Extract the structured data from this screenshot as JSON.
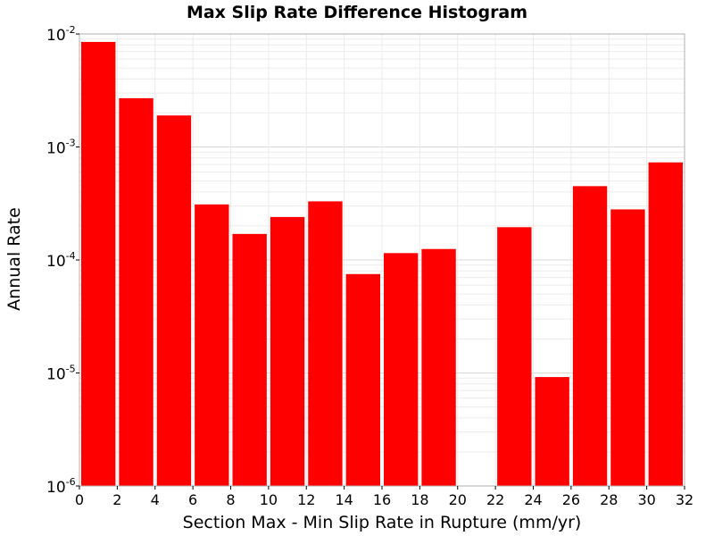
{
  "chart_data": {
    "type": "bar",
    "title": "Max Slip Rate Difference Histogram",
    "xlabel": "Section Max - Min Slip Rate in Rupture (mm/yr)",
    "ylabel": "Annual Rate",
    "xlim": [
      0,
      32
    ],
    "ylim": [
      1e-06,
      0.01
    ],
    "yscale": "log",
    "grid": true,
    "bar_color": "#ff0000",
    "bin_width": 2,
    "x_ticks": [
      "0",
      "2",
      "4",
      "6",
      "8",
      "10",
      "12",
      "14",
      "16",
      "18",
      "20",
      "22",
      "24",
      "26",
      "28",
      "30",
      "32"
    ],
    "y_ticks": [
      {
        "base": "10",
        "exp": "-2",
        "value": 0.01
      },
      {
        "base": "10",
        "exp": "-3",
        "value": 0.001
      },
      {
        "base": "10",
        "exp": "-4",
        "value": 0.0001
      },
      {
        "base": "10",
        "exp": "-5",
        "value": 1e-05
      },
      {
        "base": "10",
        "exp": "-6",
        "value": 1e-06
      }
    ],
    "bins": [
      {
        "x_start": 0,
        "x_end": 2,
        "value": 0.0085
      },
      {
        "x_start": 2,
        "x_end": 4,
        "value": 0.0027
      },
      {
        "x_start": 4,
        "x_end": 6,
        "value": 0.0019
      },
      {
        "x_start": 6,
        "x_end": 8,
        "value": 0.00031
      },
      {
        "x_start": 8,
        "x_end": 10,
        "value": 0.00017
      },
      {
        "x_start": 10,
        "x_end": 12,
        "value": 0.00024
      },
      {
        "x_start": 12,
        "x_end": 14,
        "value": 0.00033
      },
      {
        "x_start": 14,
        "x_end": 16,
        "value": 7.5e-05
      },
      {
        "x_start": 16,
        "x_end": 18,
        "value": 0.000115
      },
      {
        "x_start": 18,
        "x_end": 20,
        "value": 0.000125
      },
      {
        "x_start": 20,
        "x_end": 22,
        "value": 0
      },
      {
        "x_start": 22,
        "x_end": 24,
        "value": 0.000195
      },
      {
        "x_start": 24,
        "x_end": 26,
        "value": 9.2e-06
      },
      {
        "x_start": 26,
        "x_end": 28,
        "value": 0.00045
      },
      {
        "x_start": 28,
        "x_end": 30,
        "value": 0.00028
      },
      {
        "x_start": 30,
        "x_end": 32,
        "value": 0.00073
      }
    ]
  }
}
